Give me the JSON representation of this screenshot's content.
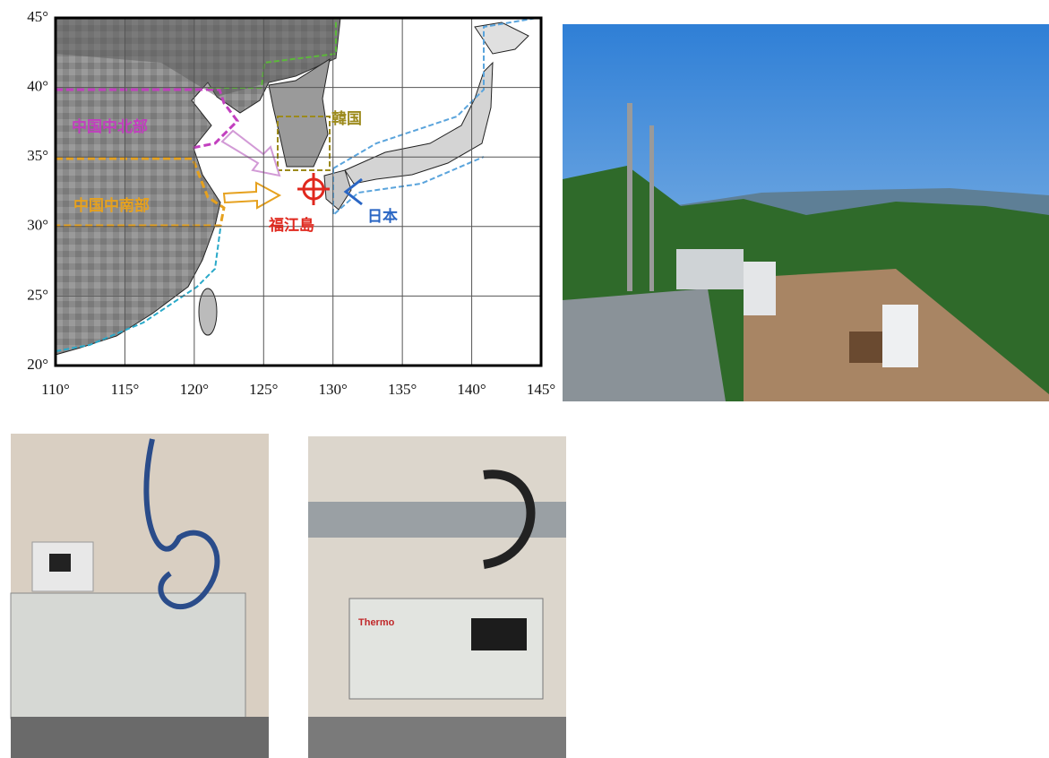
{
  "map": {
    "lat_ticks": [
      "45°",
      "40°",
      "35°",
      "30°",
      "25°",
      "20°"
    ],
    "lon_ticks": [
      "110°",
      "115°",
      "120°",
      "125°",
      "130°",
      "135°",
      "140°",
      "145°"
    ],
    "regions": [
      {
        "label": "中国中北部",
        "color": "#c23fbf"
      },
      {
        "label": "中国中南部",
        "color": "#e6a11e"
      },
      {
        "label": "韓国",
        "color": "#9c8a1c"
      },
      {
        "label": "日本",
        "color": "#2a66c4"
      },
      {
        "label": "福江島",
        "color": "#e0281e"
      }
    ]
  },
  "photos": {
    "instrument_2": {
      "brand": "Thermo"
    }
  }
}
